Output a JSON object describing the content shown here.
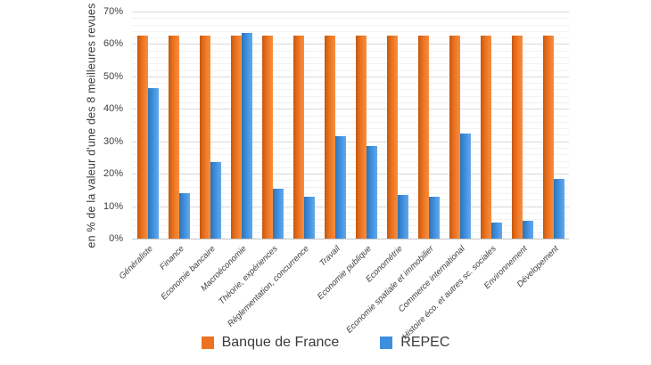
{
  "chart_data": {
    "type": "bar",
    "title": "",
    "xlabel": "",
    "ylabel": "en % de la valeur d'une des 8 meilleures revues",
    "ylim": [
      0,
      70
    ],
    "y_major_step": 10,
    "y_minor_step": 2,
    "y_tick_suffix": "%",
    "grid": true,
    "legend_position": "bottom",
    "categories": [
      "Généraliste",
      "Finance",
      "Economie bancaire",
      "Macroéconomie",
      "Théorie, expériences",
      "Réglementation, concurrence",
      "Travail",
      "Economie publique",
      "Econométrie",
      "Economie spatiale et immobilier",
      "Commerce international",
      "Histoire éco. et autres sc. sociales",
      "Environnement",
      "Dévelopement"
    ],
    "series": [
      {
        "name": "Banque de France",
        "color": "#ED7220",
        "color_edge": "#C45911",
        "color_light": "#F78F3F",
        "values": [
          62.5,
          62.5,
          62.5,
          62.5,
          62.5,
          62.5,
          62.5,
          62.5,
          62.5,
          62.5,
          62.5,
          62.5,
          62.5,
          62.5
        ]
      },
      {
        "name": "REPEC",
        "color": "#3E8EDE",
        "color_edge": "#2D74B5",
        "color_light": "#62A9EA",
        "values": [
          46.5,
          14,
          23.5,
          63.5,
          15.5,
          13,
          31.5,
          28.5,
          13.5,
          13,
          32.5,
          5,
          5.5,
          18.5
        ]
      }
    ],
    "colors": {
      "gridline_major": "#D9D9D9",
      "gridline_minor": "#F2F2F2",
      "axis_line": "#C3C3C3",
      "text": "#404040"
    }
  }
}
